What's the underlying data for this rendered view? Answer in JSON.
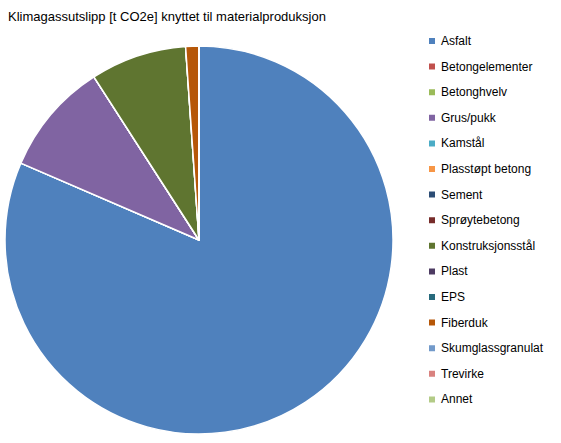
{
  "chart_data": {
    "type": "pie",
    "title": "Klimagassutslipp [t CO2e] knyttet til materialproduksjon",
    "categories": [
      "Asfalt",
      "Betongelementer",
      "Betonghvelv",
      "Grus/pukk",
      "Kamstål",
      "Plasstøpt betong",
      "Sement",
      "Sprøytebetong",
      "Konstruksjonsstål",
      "Plast",
      "EPS",
      "Fiberduk",
      "Skumglassgranulat",
      "Trevirke",
      "Annet"
    ],
    "values": [
      81.4,
      0,
      0,
      9.4,
      0,
      0,
      0,
      0,
      8.0,
      0,
      0,
      1.1,
      0,
      0,
      0
    ],
    "colors": [
      "#4f81bd",
      "#c0504d",
      "#9bbb59",
      "#8064a2",
      "#4bacc6",
      "#f79646",
      "#2c4d75",
      "#772c2a",
      "#5f7530",
      "#4d3b62",
      "#276a7c",
      "#b65708",
      "#729aca",
      "#d9827f",
      "#b3cb87"
    ],
    "legend": "right",
    "data_labels": false
  }
}
